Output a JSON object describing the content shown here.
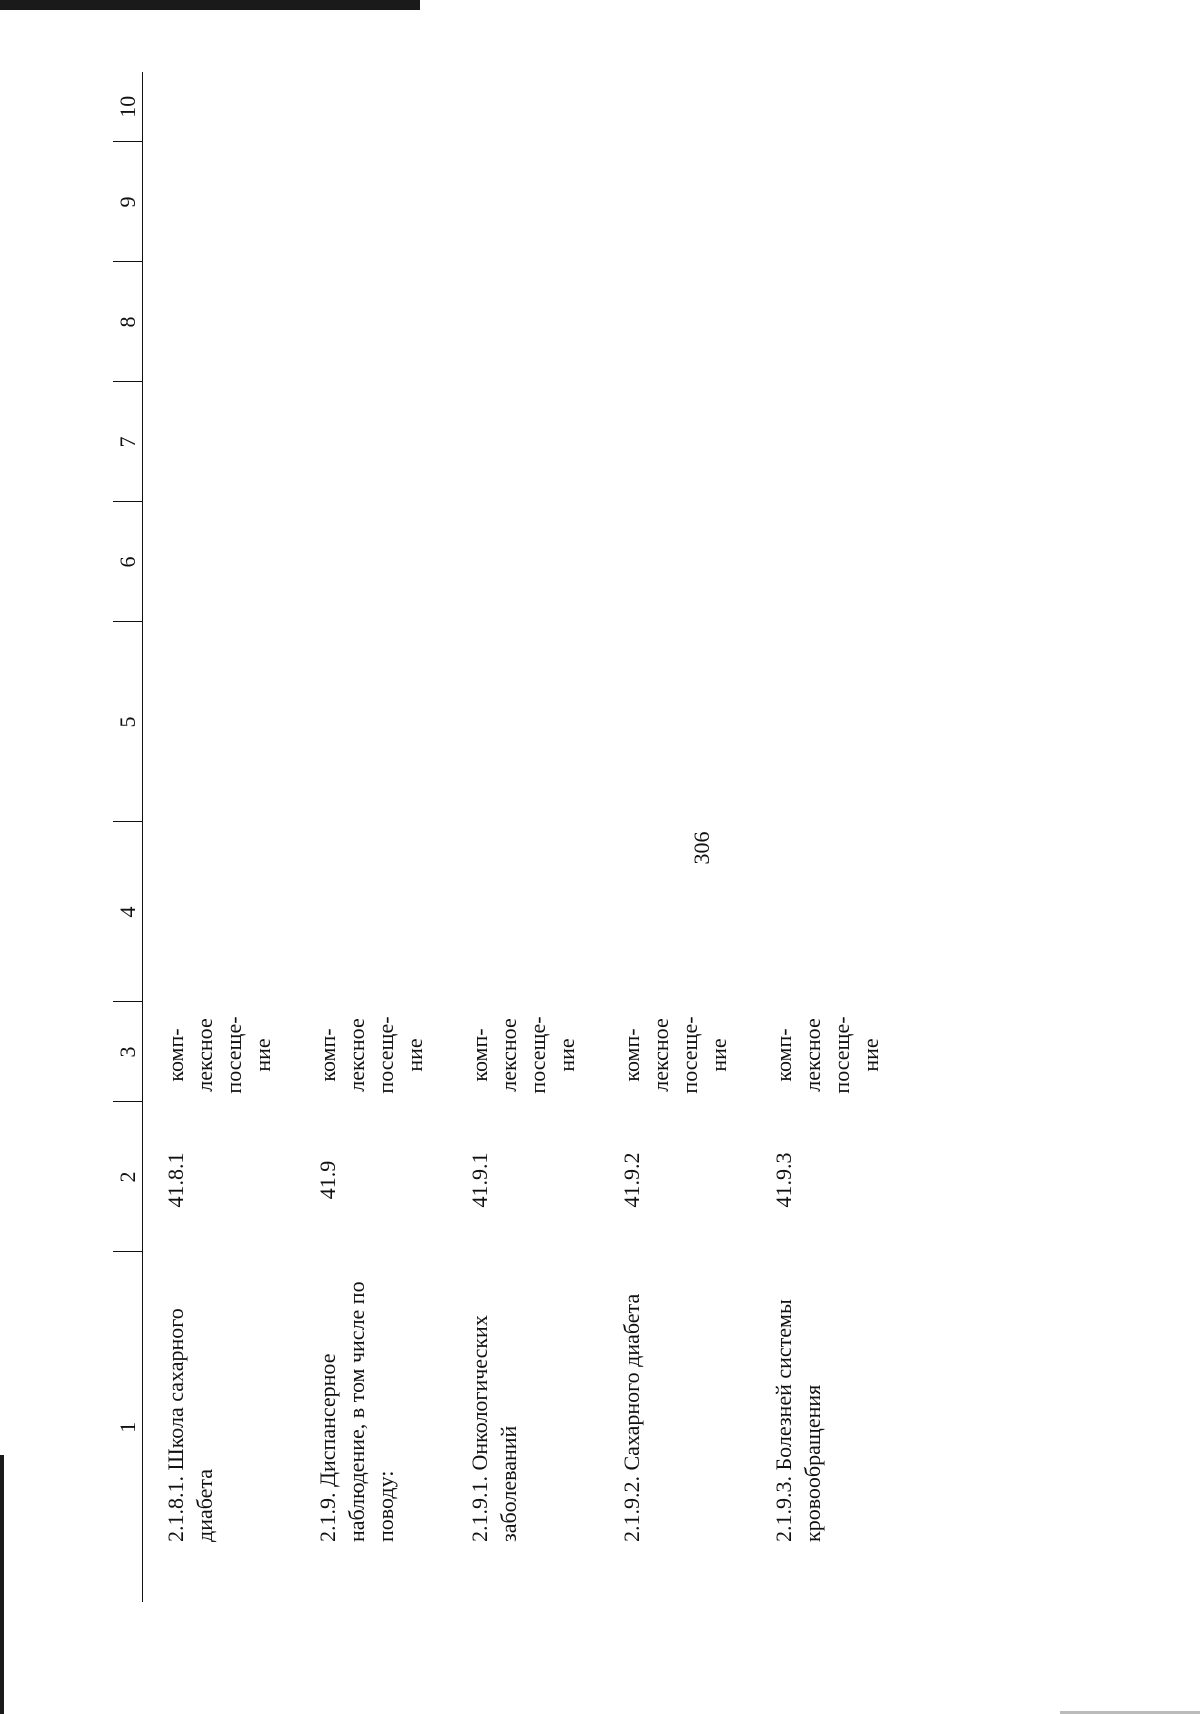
{
  "page_number": "306",
  "table": {
    "headers": [
      "1",
      "2",
      "3",
      "4",
      "5",
      "6",
      "7",
      "8",
      "9",
      "10"
    ],
    "rows": [
      {
        "name": "2.1.8.1. Школа сахарного диабета",
        "code": "41.8.1",
        "unit": "комп-лексное посеще-ние"
      },
      {
        "name": "2.1.9. Диспансерное наблюдение, в том числе по поводу:",
        "code": "41.9",
        "unit": "комп-лексное посеще-ние"
      },
      {
        "name": "2.1.9.1. Онкологических заболеваний",
        "code": "41.9.1",
        "unit": "комп-лексное посеще-ние"
      },
      {
        "name": "2.1.9.2. Сахарного диабета",
        "code": "41.9.2",
        "unit": "комп-лексное посеще-ние"
      },
      {
        "name": "2.1.9.3. Болезней системы кровообращения",
        "code": "41.9.3",
        "unit": "комп-лексное посеще-ние"
      }
    ]
  }
}
